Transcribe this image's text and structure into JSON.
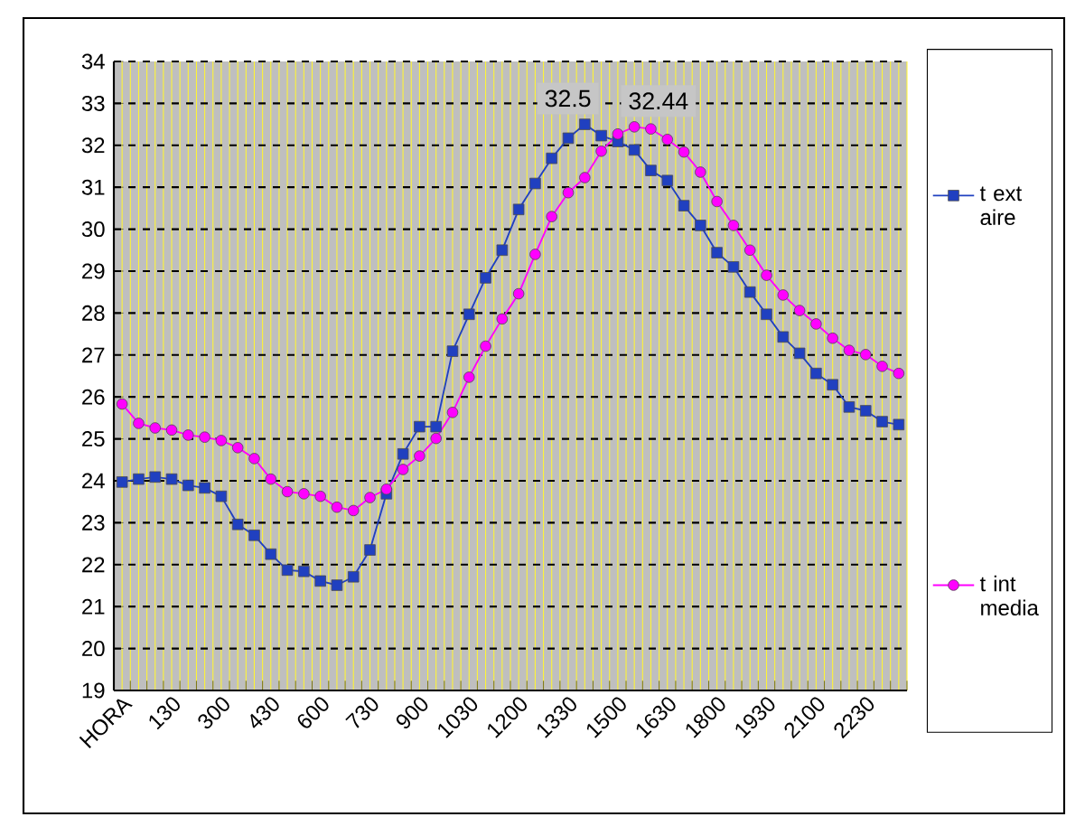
{
  "chart_data": {
    "type": "line",
    "categories": [
      "HORA",
      null,
      null,
      "130",
      null,
      null,
      "300",
      null,
      null,
      "430",
      null,
      null,
      "600",
      null,
      null,
      "730",
      null,
      null,
      "900",
      null,
      null,
      "1030",
      null,
      null,
      "1200",
      null,
      null,
      "1330",
      null,
      null,
      "1500",
      null,
      null,
      "1630",
      null,
      null,
      "1800",
      null,
      null,
      "1930",
      null,
      null,
      "2100",
      null,
      null,
      "2230",
      null,
      null
    ],
    "series": [
      {
        "name": "t ext aire",
        "color": "#2040c0",
        "marker": "square",
        "values": [
          23.97,
          24.04,
          24.09,
          24.04,
          23.89,
          23.83,
          23.63,
          22.96,
          22.7,
          22.25,
          21.87,
          21.84,
          21.61,
          21.51,
          21.71,
          22.35,
          23.69,
          24.64,
          25.29,
          25.29,
          27.09,
          27.97,
          28.84,
          29.5,
          30.47,
          31.09,
          31.69,
          32.17,
          32.5,
          32.23,
          32.09,
          31.89,
          31.4,
          31.16,
          30.56,
          30.09,
          29.44,
          29.1,
          28.5,
          27.97,
          27.43,
          27.04,
          26.56,
          26.29,
          25.76,
          25.67,
          25.41,
          25.34
        ],
        "value_labels": [
          null,
          null,
          null,
          null,
          null,
          null,
          null,
          null,
          null,
          null,
          null,
          null,
          null,
          null,
          null,
          null,
          null,
          null,
          null,
          null,
          null,
          null,
          null,
          null,
          null,
          null,
          null,
          null,
          "32.5",
          null,
          null,
          null,
          null,
          null,
          null,
          null,
          null,
          null,
          null,
          null,
          null,
          null,
          null,
          null,
          null,
          null,
          null,
          null
        ]
      },
      {
        "name": "t int media",
        "color": "#ff00ff",
        "marker": "circle",
        "values": [
          25.83,
          25.37,
          25.26,
          25.21,
          25.09,
          25.04,
          24.96,
          24.79,
          24.53,
          24.04,
          23.74,
          23.69,
          23.63,
          23.37,
          23.29,
          23.6,
          23.8,
          24.27,
          24.59,
          25.01,
          25.63,
          26.47,
          27.21,
          27.86,
          28.46,
          29.4,
          30.3,
          30.87,
          31.23,
          31.86,
          32.27,
          32.44,
          32.39,
          32.14,
          31.84,
          31.36,
          30.66,
          30.09,
          29.5,
          28.9,
          28.43,
          28.06,
          27.74,
          27.4,
          27.11,
          27.01,
          26.73,
          26.56
        ],
        "value_labels": [
          null,
          null,
          null,
          null,
          null,
          null,
          null,
          null,
          null,
          null,
          null,
          null,
          null,
          null,
          null,
          null,
          null,
          null,
          null,
          null,
          null,
          null,
          null,
          null,
          null,
          null,
          null,
          null,
          null,
          null,
          null,
          "32.44",
          null,
          null,
          null,
          null,
          null,
          null,
          null,
          null,
          null,
          null,
          null,
          null,
          null,
          null,
          null,
          null
        ]
      }
    ],
    "ylim": [
      19,
      34
    ],
    "yticks": [
      19,
      20,
      21,
      22,
      23,
      24,
      25,
      26,
      27,
      28,
      29,
      30,
      31,
      32,
      33,
      34
    ],
    "grid": true,
    "legend": "right",
    "line_style": "solid"
  }
}
